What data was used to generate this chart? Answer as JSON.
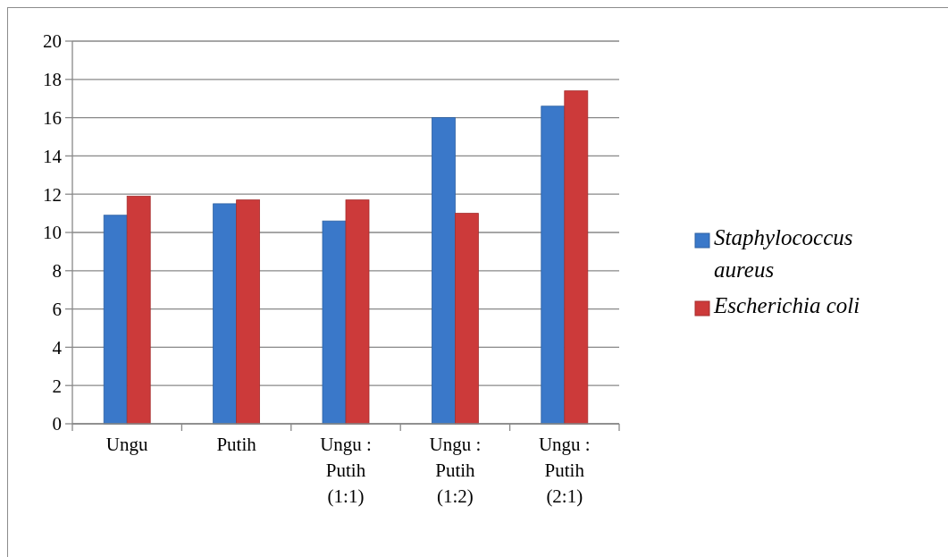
{
  "chart_data": {
    "type": "bar",
    "categories": [
      "Ungu",
      "Putih",
      "Ungu : Putih (1:1)",
      "Ungu : Putih (1:2)",
      "Ungu : Putih (2:1)"
    ],
    "series": [
      {
        "name": "Staphylococcus aureus",
        "color": "#3a78c9",
        "values": [
          10.9,
          11.5,
          10.6,
          16.0,
          16.6
        ]
      },
      {
        "name": "Escherichia coli",
        "color": "#cc3a3a",
        "values": [
          11.9,
          11.7,
          11.7,
          11.0,
          17.4
        ]
      }
    ],
    "ylim": [
      0,
      20
    ],
    "yticks": [
      0,
      2,
      4,
      6,
      8,
      10,
      12,
      14,
      16,
      18,
      20
    ],
    "grid": "y",
    "legend": "right"
  }
}
